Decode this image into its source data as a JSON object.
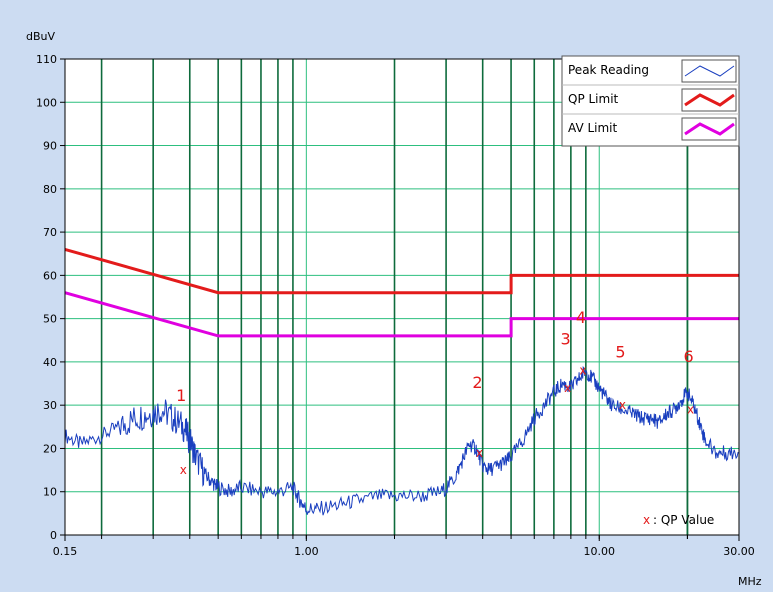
{
  "chart_data": {
    "type": "line",
    "xscale": "log",
    "xlim": [
      0.15,
      30.0
    ],
    "ylim": [
      0,
      110
    ],
    "ylabel": "dBuV",
    "xlabel": "MHz",
    "y_ticks": [
      "0",
      "10",
      "20",
      "30",
      "40",
      "50",
      "60",
      "70",
      "80",
      "90",
      "100",
      "110"
    ],
    "x_ticks": [
      {
        "value": 0.15,
        "label": "0.15"
      },
      {
        "value": 1.0,
        "label": "1.00"
      },
      {
        "value": 10.0,
        "label": "10.00"
      },
      {
        "value": 30.0,
        "label": "30.00"
      }
    ],
    "grid": true,
    "legend_position": "top-right",
    "legend": [
      {
        "label": "Peak Reading",
        "color": "#1a3fbf"
      },
      {
        "label": "QP Limit",
        "color": "#e31b1b"
      },
      {
        "label": "AV Limit",
        "color": "#e000e0"
      }
    ],
    "series": [
      {
        "name": "Peak Reading",
        "color": "#1a3fbf",
        "x": [
          0.15,
          0.17,
          0.2,
          0.23,
          0.26,
          0.29,
          0.32,
          0.35,
          0.38,
          0.4,
          0.42,
          0.45,
          0.48,
          0.5,
          0.55,
          0.6,
          0.7,
          0.8,
          0.9,
          0.95,
          1.0,
          1.1,
          1.3,
          1.5,
          1.8,
          2.1,
          2.5,
          2.9,
          3.2,
          3.4,
          3.6,
          3.8,
          4.0,
          4.2,
          4.5,
          4.8,
          5.0,
          5.5,
          6.0,
          6.5,
          7.0,
          7.5,
          8.0,
          8.5,
          9.0,
          9.5,
          10.0,
          10.5,
          11.0,
          12.0,
          13.0,
          14.0,
          15.0,
          16.0,
          17.0,
          18.0,
          19.0,
          20.0,
          21.0,
          22.0,
          23.0,
          25.0,
          27.0,
          30.0
        ],
        "values": [
          23,
          21,
          23,
          25,
          27,
          28,
          29,
          27,
          25,
          22,
          18,
          14,
          12,
          11,
          10,
          11,
          10,
          10,
          11,
          8,
          6,
          6,
          7,
          8,
          9,
          9,
          9,
          10,
          13,
          17,
          21,
          20,
          16,
          15,
          16,
          17,
          18,
          22,
          27,
          30,
          33,
          35,
          34,
          36,
          38,
          36,
          34,
          32,
          30,
          29,
          28,
          27,
          27,
          26,
          28,
          29,
          31,
          33,
          30,
          26,
          22,
          19,
          19,
          19
        ]
      },
      {
        "name": "QP Limit",
        "color": "#e31b1b",
        "x": [
          0.15,
          0.5,
          5.0,
          5.0,
          30.0
        ],
        "values": [
          66,
          56,
          56,
          60,
          60
        ]
      },
      {
        "name": "AV Limit",
        "color": "#e000e0",
        "x": [
          0.15,
          0.5,
          5.0,
          5.0,
          30.0
        ],
        "values": [
          56,
          46,
          46,
          50,
          50
        ]
      }
    ],
    "qp_markers": [
      {
        "label": "1",
        "x": 0.38,
        "y": 15,
        "label_y": 31
      },
      {
        "label": "2",
        "x": 3.9,
        "y": 19,
        "label_y": 34
      },
      {
        "label": "3",
        "x": 7.8,
        "y": 34,
        "label_y": 44
      },
      {
        "label": "4",
        "x": 8.8,
        "y": 38,
        "label_y": 49
      },
      {
        "label": "5",
        "x": 12.0,
        "y": 30,
        "label_y": 41
      },
      {
        "label": "6",
        "x": 20.5,
        "y": 29,
        "label_y": 40
      }
    ],
    "qp_marker_color": "#e31b1b",
    "annotation": ": QP Value"
  }
}
